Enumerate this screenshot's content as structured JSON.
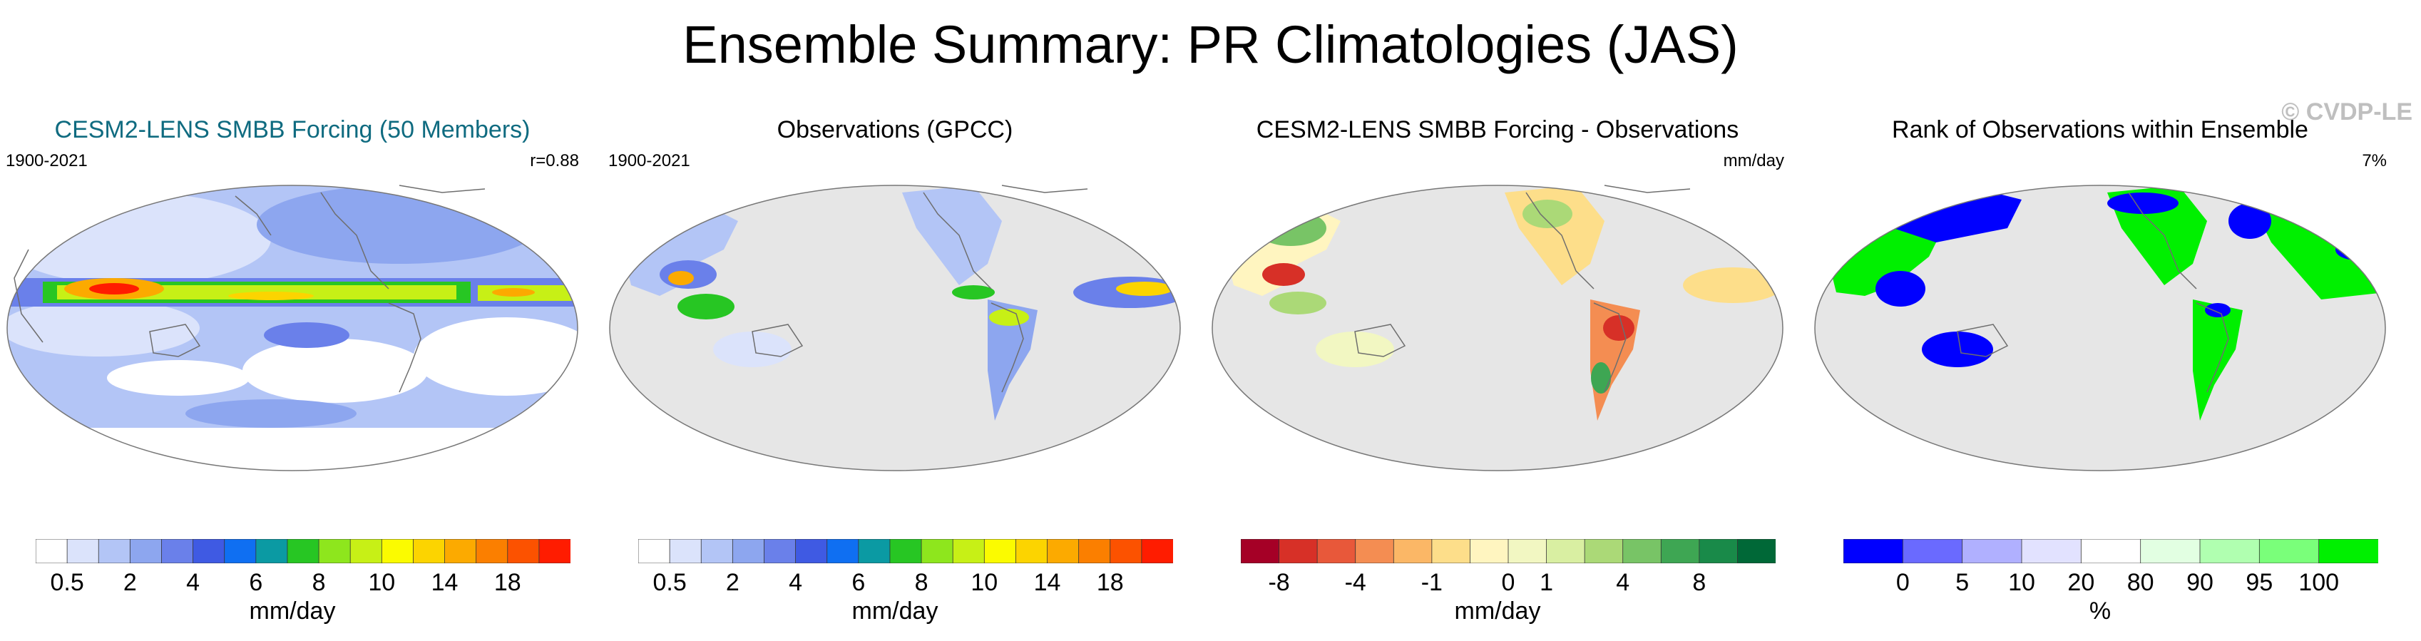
{
  "title": "Ensemble Summary: PR Climatologies (JAS)",
  "copyright": "© CVDP-LE",
  "colors": {
    "ocean_masked": "#e6e6e6",
    "land_masked": "#e6e6e6",
    "coast": "#6e6e6e",
    "accent_title": "#0f6b80"
  },
  "panels": [
    {
      "title": "CESM2-LENS SMBB Forcing (50 Members)",
      "left_label": "1900-2021",
      "right_label": "r=0.88",
      "colorbar": {
        "colors": [
          "#ffffff",
          "#dbe3fb",
          "#b3c5f6",
          "#8da6ef",
          "#6a80ea",
          "#3f5ae3",
          "#0f6ff2",
          "#0b9aa3",
          "#27c623",
          "#8ee61d",
          "#c7f016",
          "#fbfb00",
          "#fcd400",
          "#fcaa00",
          "#fb7f00",
          "#fc5200",
          "#ff1c00"
        ],
        "ticks": [
          "0.5",
          "2",
          "4",
          "6",
          "8",
          "10",
          "14",
          "18"
        ],
        "unit": "mm/day"
      }
    },
    {
      "title": "Observations (GPCC)",
      "left_label": "1900-2021",
      "right_label": "",
      "colorbar": {
        "colors": [
          "#ffffff",
          "#dbe3fb",
          "#b3c5f6",
          "#8da6ef",
          "#6a80ea",
          "#3f5ae3",
          "#0f6ff2",
          "#0b9aa3",
          "#27c623",
          "#8ee61d",
          "#c7f016",
          "#fbfb00",
          "#fcd400",
          "#fcaa00",
          "#fb7f00",
          "#fc5200",
          "#ff1c00"
        ],
        "ticks": [
          "0.5",
          "2",
          "4",
          "6",
          "8",
          "10",
          "14",
          "18"
        ],
        "unit": "mm/day"
      }
    },
    {
      "title": "CESM2-LENS SMBB Forcing - Observations",
      "left_label": "",
      "right_label": "mm/day",
      "colorbar": {
        "colors": [
          "#a50026",
          "#d73027",
          "#e8583a",
          "#f48d52",
          "#fbb766",
          "#fdde8a",
          "#fff5c0",
          "#f2f7c2",
          "#d9efa2",
          "#abd977",
          "#78c466",
          "#3ea653",
          "#198a49",
          "#006837"
        ],
        "ticks": [
          "-8",
          "-4",
          "-1",
          "0",
          "1",
          "4",
          "8"
        ],
        "unit": "mm/day"
      }
    },
    {
      "title": "Rank of Observations within Ensemble",
      "left_label": "",
      "right_label": "7%",
      "colorbar": {
        "colors": [
          "#0000ff",
          "#6a6aff",
          "#b0b0ff",
          "#e2e2ff",
          "#ffffff",
          "#e2ffe2",
          "#b0ffb0",
          "#7aff7a",
          "#00f000"
        ],
        "ticks": [
          "0",
          "5",
          "10",
          "20",
          "80",
          "90",
          "95",
          "100"
        ],
        "unit": "%"
      }
    }
  ]
}
